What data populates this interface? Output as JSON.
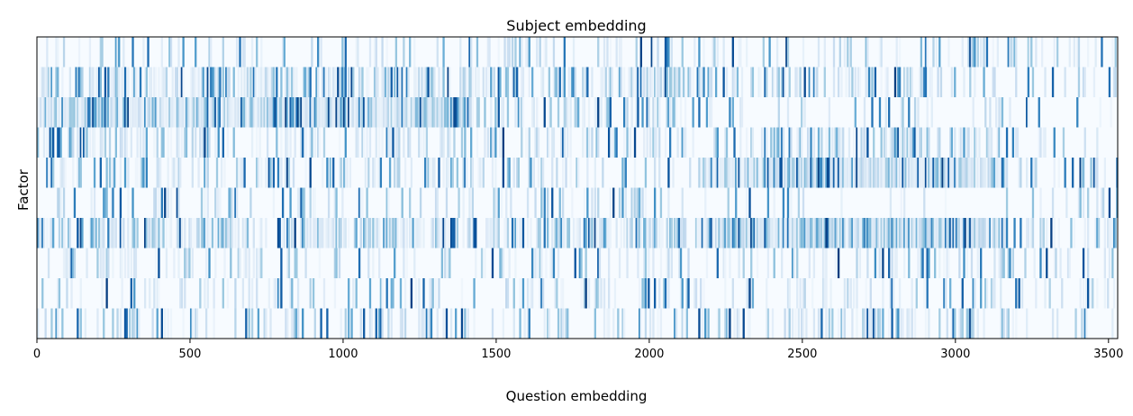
{
  "chart_data": {
    "type": "heatmap",
    "title": "Subject embedding",
    "xlabel": "Question embedding",
    "ylabel": "Factor",
    "xlim": [
      0,
      3530
    ],
    "x_ticks": [
      0,
      500,
      1000,
      1500,
      2000,
      2500,
      3000,
      3500
    ],
    "rows": 10,
    "colormap": [
      "#f7fbff",
      "#deebf7",
      "#c6dbef",
      "#9ecae1",
      "#6baed6",
      "#4292c6",
      "#2171b5",
      "#08519c",
      "#08306b"
    ],
    "grid": false,
    "legend": "none"
  }
}
